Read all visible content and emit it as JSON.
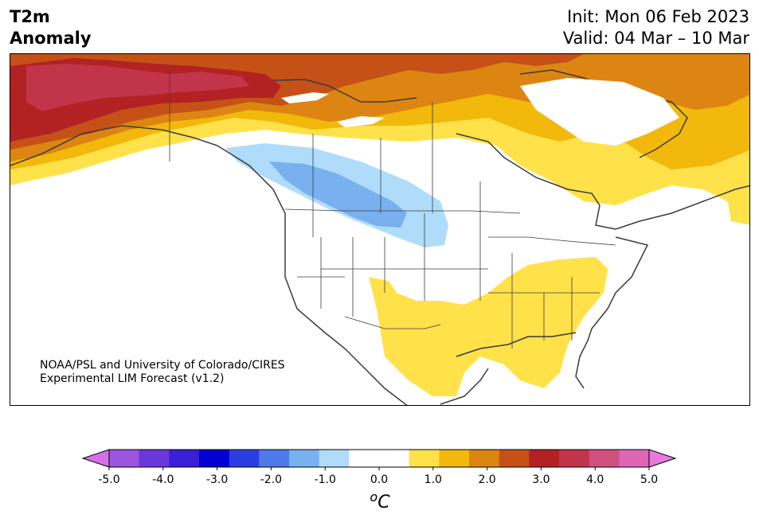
{
  "header": {
    "title_line1": "T2m",
    "title_line2": "Anomaly",
    "init": "Init: Mon 06 Feb 2023",
    "valid": "Valid: 04 Mar – 10 Mar"
  },
  "credit": {
    "line1": "NOAA/PSL and University of Colorado/CIRES",
    "line2": "Experimental LIM Forecast (v1.2)"
  },
  "colorbar": {
    "colors": [
      "#d670e8",
      "#9b55e0",
      "#6a37dc",
      "#3a1fd4",
      "#0000d2",
      "#2a3ee0",
      "#4f79e8",
      "#78b0f0",
      "#aedcfa",
      "#ffffff",
      "#ffffff",
      "#ffe14a",
      "#f2b80b",
      "#dd8512",
      "#c55117",
      "#b22222",
      "#c2344a",
      "#cf4f7f",
      "#de65b6",
      "#e979dd"
    ],
    "ticks": [
      "-5.0",
      "-4.0",
      "-3.0",
      "-2.0",
      "-1.0",
      "0.0",
      "1.0",
      "2.0",
      "3.0",
      "4.0",
      "5.0"
    ],
    "unit": "oC"
  },
  "map": {
    "region": "North America",
    "shading": {
      "strong_warm": "#b22222",
      "warm_red": "#c2344a",
      "warm_orange_red": "#c55117",
      "warm_orange": "#dd8512",
      "warm_gold": "#f2b80b",
      "warm_yellow": "#ffe14a",
      "cool_light": "#aedcfa",
      "cool_mid": "#78b0f0"
    }
  }
}
